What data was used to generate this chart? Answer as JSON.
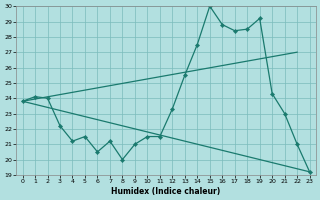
{
  "line1_x": [
    0,
    1,
    2,
    3,
    4,
    5,
    6,
    7,
    8,
    9,
    10,
    11,
    12,
    13,
    14,
    15,
    16,
    17,
    18,
    19,
    20,
    21,
    22,
    23
  ],
  "line1_y": [
    23.8,
    24.1,
    24.0,
    22.2,
    21.2,
    21.5,
    20.5,
    21.2,
    20.0,
    21.0,
    21.5,
    21.5,
    23.3,
    25.5,
    27.5,
    30.0,
    28.8,
    28.4,
    28.5,
    29.2,
    24.3,
    23.0,
    21.0,
    19.2
  ],
  "line2_x": [
    0,
    22
  ],
  "line2_y": [
    23.8,
    27.0
  ],
  "line3_x": [
    0,
    23
  ],
  "line3_y": [
    23.8,
    19.2
  ],
  "color": "#1a7a6e",
  "bg_color": "#b2e0e0",
  "grid_color": "#7bbcbc",
  "xlabel": "Humidex (Indice chaleur)",
  "ylim": [
    19,
    30
  ],
  "xlim": [
    -0.5,
    23.5
  ],
  "yticks": [
    19,
    20,
    21,
    22,
    23,
    24,
    25,
    26,
    27,
    28,
    29,
    30
  ],
  "xticks": [
    0,
    1,
    2,
    3,
    4,
    5,
    6,
    7,
    8,
    9,
    10,
    11,
    12,
    13,
    14,
    15,
    16,
    17,
    18,
    19,
    20,
    21,
    22,
    23
  ]
}
